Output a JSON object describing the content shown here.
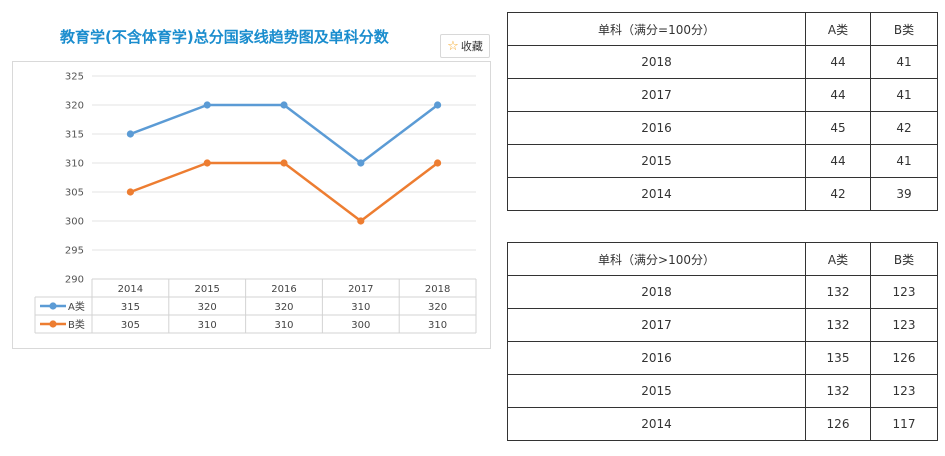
{
  "chart": {
    "title": "教育学(不含体育学)总分国家线趋势图及单科分数",
    "favorite_label": "收藏"
  },
  "chart_data": {
    "type": "line",
    "categories": [
      "2014",
      "2015",
      "2016",
      "2017",
      "2018"
    ],
    "series": [
      {
        "name": "A类",
        "color": "#5b9bd5",
        "values": [
          315,
          320,
          320,
          310,
          320
        ]
      },
      {
        "name": "B类",
        "color": "#ed7d31",
        "values": [
          305,
          310,
          310,
          300,
          310
        ]
      }
    ],
    "yticks": [
      325,
      320,
      315,
      310,
      305,
      300,
      295,
      290
    ],
    "ylim": [
      290,
      325
    ],
    "grid": true,
    "legend": "data-table"
  },
  "table1": {
    "header": {
      "subject": "单科（满分=100分）",
      "a": "A类",
      "b": "B类"
    },
    "rows": [
      {
        "year": "2018",
        "a": "44",
        "b": "41"
      },
      {
        "year": "2017",
        "a": "44",
        "b": "41"
      },
      {
        "year": "2016",
        "a": "45",
        "b": "42"
      },
      {
        "year": "2015",
        "a": "44",
        "b": "41"
      },
      {
        "year": "2014",
        "a": "42",
        "b": "39"
      }
    ]
  },
  "table2": {
    "header": {
      "subject": "单科（满分>100分）",
      "a": "A类",
      "b": "B类"
    },
    "rows": [
      {
        "year": "2018",
        "a": "132",
        "b": "123"
      },
      {
        "year": "2017",
        "a": "132",
        "b": "123"
      },
      {
        "year": "2016",
        "a": "135",
        "b": "126"
      },
      {
        "year": "2015",
        "a": "132",
        "b": "123"
      },
      {
        "year": "2014",
        "a": "126",
        "b": "117"
      }
    ]
  }
}
